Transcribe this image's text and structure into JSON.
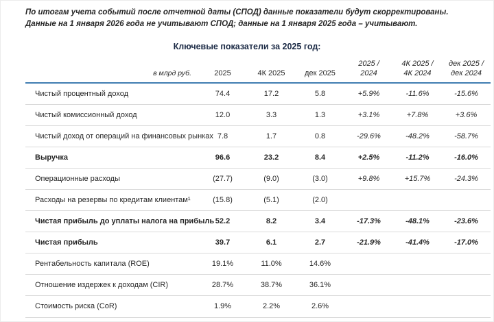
{
  "page": {
    "disclaimer_line1": "По итогам учета событий после отчетной даты (СПОД) данные показатели будут скорректированы.",
    "disclaimer_line2": "Данные на 1 января 2026 года не учитывают СПОД; данные на 1 января 2025 года – учитывают.",
    "title": "Ключевые показатели за 2025 год:"
  },
  "colors": {
    "header_rule_blue": "#3f7cb1",
    "row_rule_gray": "#d9d9d9",
    "title_text": "#1b2a45",
    "body_text": "#262626"
  },
  "chart_data": {
    "type": "table",
    "unit_label": "в млрд руб.",
    "columns": [
      {
        "lines": [
          "2025"
        ],
        "italic": false
      },
      {
        "lines": [
          "4К 2025"
        ],
        "italic": false
      },
      {
        "lines": [
          "дек 2025"
        ],
        "italic": false
      },
      {
        "lines": [
          "2025 /",
          "2024"
        ],
        "italic": true
      },
      {
        "lines": [
          "4К 2025 /",
          "4К 2024"
        ],
        "italic": true
      },
      {
        "lines": [
          "дек 2025 /",
          "дек 2024"
        ],
        "italic": true
      }
    ],
    "rows": [
      {
        "label": "Чистый процентный доход",
        "bold": false,
        "values": [
          "74.4",
          "17.2",
          "5.8",
          "+5.9%",
          "-11.6%",
          "-15.6%"
        ]
      },
      {
        "label": "Чистый комиссионный доход",
        "bold": false,
        "values": [
          "12.0",
          "3.3",
          "1.3",
          "+3.1%",
          "+7.8%",
          "+3.6%"
        ]
      },
      {
        "label": "Чистый доход от операций на финансовых рынках",
        "bold": false,
        "values": [
          "7.8",
          "1.7",
          "0.8",
          "-29.6%",
          "-48.2%",
          "-58.7%"
        ]
      },
      {
        "label": "Выручка",
        "bold": true,
        "values": [
          "96.6",
          "23.2",
          "8.4",
          "+2.5%",
          "-11.2%",
          "-16.0%"
        ]
      },
      {
        "label": "Операционные расходы",
        "bold": false,
        "values": [
          "(27.7)",
          "(9.0)",
          "(3.0)",
          "+9.8%",
          "+15.7%",
          "-24.3%"
        ]
      },
      {
        "label": "Расходы на резервы по кредитам клиентам¹",
        "bold": false,
        "values": [
          "(15.8)",
          "(5.1)",
          "(2.0)",
          "",
          "",
          ""
        ]
      },
      {
        "label": "Чистая прибыль до уплаты налога на прибыль",
        "bold": true,
        "values": [
          "52.2",
          "8.2",
          "3.4",
          "-17.3%",
          "-48.1%",
          "-23.6%"
        ]
      },
      {
        "label": "Чистая прибыль",
        "bold": true,
        "values": [
          "39.7",
          "6.1",
          "2.7",
          "-21.9%",
          "-41.4%",
          "-17.0%"
        ]
      },
      {
        "label": "Рентабельность капитала (ROE)",
        "bold": false,
        "values": [
          "19.1%",
          "11.0%",
          "14.6%",
          "",
          "",
          ""
        ]
      },
      {
        "label": "Отношение издержек к доходам (CIR)",
        "bold": false,
        "values": [
          "28.7%",
          "38.7%",
          "36.1%",
          "",
          "",
          ""
        ]
      },
      {
        "label": "Стоимость риска (CoR)",
        "bold": false,
        "values": [
          "1.9%",
          "2.2%",
          "2.6%",
          "",
          "",
          ""
        ]
      }
    ]
  }
}
